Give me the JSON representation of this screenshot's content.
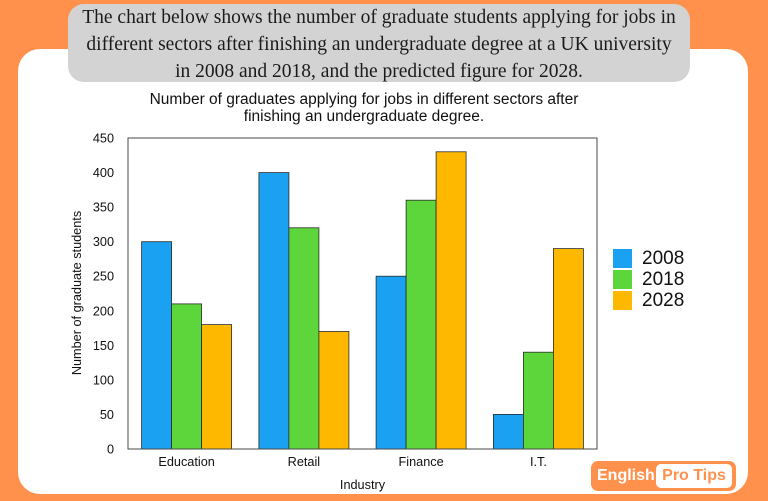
{
  "colors": {
    "background": "#FF914D",
    "card": "#FFFFFF",
    "prompt_box": "#D3D3D3",
    "logo_bg": "#FF914D",
    "logo_pill": "#FFFFFF",
    "logo_text_light": "#FFFFFF",
    "logo_text_accent": "#FF914D"
  },
  "prompt": {
    "lines": [
      "The chart below shows the number of graduate students applying for jobs in",
      "different sectors after finishing an undergraduate degree at a UK university",
      "in 2008 and 2018, and the predicted figure for 2028."
    ]
  },
  "chart_data": {
    "type": "bar",
    "title": [
      "Number of graduates applying for jobs in different sectors after",
      "finishing an undergraduate degree."
    ],
    "xlabel": "Industry",
    "ylabel": "Number of graduate students",
    "categories": [
      "Education",
      "Retail",
      "Finance",
      "I.T."
    ],
    "series": [
      {
        "name": "2008",
        "color": "#1BA1F2",
        "values": [
          300,
          400,
          250,
          50
        ]
      },
      {
        "name": "2018",
        "color": "#5DD63B",
        "values": [
          210,
          320,
          360,
          140
        ]
      },
      {
        "name": "2028",
        "color": "#FFB800",
        "values": [
          180,
          170,
          430,
          290
        ]
      }
    ],
    "ylim": [
      0,
      450
    ],
    "yticks": [
      0,
      50,
      100,
      150,
      200,
      250,
      300,
      350,
      400,
      450
    ],
    "grid": false,
    "legend": "right"
  },
  "logo": {
    "word1": "English",
    "word2": "Pro Tips"
  }
}
